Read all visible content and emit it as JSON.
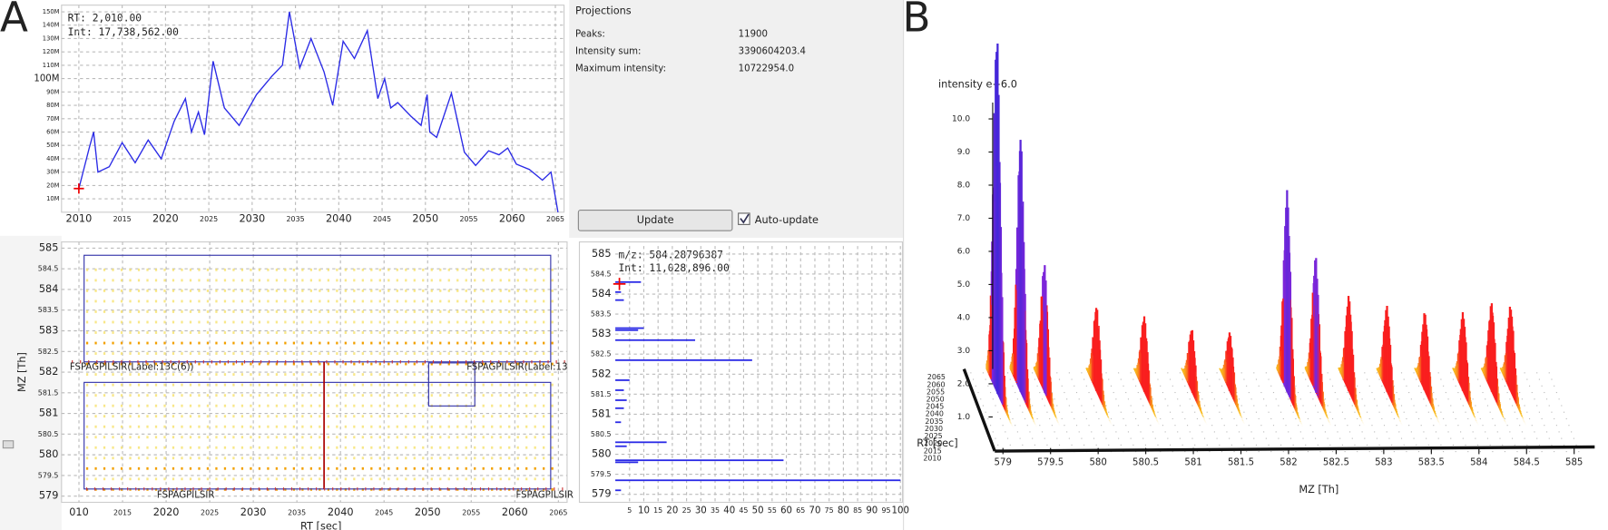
{
  "labels": {
    "a": "A",
    "b": "B"
  },
  "rt_chart": {
    "type": "line",
    "cursor_rt": "RT:  2,010.00",
    "cursor_int": "Int: 17,738,562.00",
    "color": "#2a2ae6",
    "x": [
      2010,
      2011.2,
      2011.7,
      2012.2,
      2013.5,
      2015,
      2016.5,
      2018,
      2019.5,
      2021,
      2022.3,
      2023,
      2023.8,
      2024.5,
      2025.5,
      2026.8,
      2028.5,
      2030.5,
      2032.3,
      2033.5,
      2034.3,
      2035.5,
      2036.8,
      2038.3,
      2039.3,
      2040.5,
      2041.8,
      2043.3,
      2044.5,
      2045.3,
      2046,
      2046.8,
      2048.3,
      2049.5,
      2050.2,
      2050.5,
      2051.3,
      2053,
      2054.5,
      2055.8,
      2057.3,
      2058.5,
      2059.5,
      2060.5,
      2062,
      2063.5,
      2064.5,
      2065.3
    ],
    "values": [
      17.7,
      48,
      60,
      30,
      34,
      52,
      37,
      54,
      40,
      68,
      85,
      60,
      75,
      58,
      113,
      78,
      65,
      88,
      102,
      110,
      150,
      108,
      130,
      105,
      80,
      128,
      115,
      136,
      85,
      100,
      78,
      82,
      72,
      65,
      88,
      60,
      56,
      89,
      45,
      35,
      46,
      43,
      48,
      36,
      32,
      24,
      30,
      0
    ],
    "xlim": [
      2008,
      2066
    ],
    "xticks": [
      2010,
      2015,
      2020,
      2025,
      2030,
      2035,
      2040,
      2045,
      2050,
      2055,
      2060,
      2065
    ],
    "ylim": [
      0,
      155
    ],
    "yticks": [
      {
        "value": 10,
        "label": "10M"
      },
      {
        "value": 20,
        "label": "20M"
      },
      {
        "value": 30,
        "label": "30M"
      },
      {
        "value": 40,
        "label": "40M"
      },
      {
        "value": 50,
        "label": "50M"
      },
      {
        "value": 60,
        "label": "60M"
      },
      {
        "value": 70,
        "label": "70M"
      },
      {
        "value": 80,
        "label": "80M"
      },
      {
        "value": 90,
        "label": "90M"
      },
      {
        "value": 100,
        "label": "100M"
      },
      {
        "value": 110,
        "label": "110M"
      },
      {
        "value": 120,
        "label": "120M"
      },
      {
        "value": 130,
        "label": "130M"
      },
      {
        "value": 140,
        "label": "140M"
      },
      {
        "value": 150,
        "label": "150M"
      }
    ],
    "grid": true
  },
  "projections": {
    "title": "Projections",
    "rows": [
      [
        "Peaks:",
        "11900"
      ],
      [
        "Intensity sum:",
        "3390604203.4"
      ],
      [
        "Maximum intensity:",
        "10722954.0"
      ]
    ],
    "button": "Update",
    "checkbox": "Auto-update"
  },
  "map_2d": {
    "x_label": "RT [sec]",
    "y_label": "MZ [Th]",
    "xlim": [
      2008,
      2066
    ],
    "ylim": [
      578.85,
      585.15
    ],
    "xticks": [
      {
        "value": 2010,
        "label": "010"
      },
      2015,
      2020,
      2025,
      2030,
      2035,
      2040,
      2045,
      2050,
      2055,
      2060,
      2065
    ],
    "yticks": [
      579,
      579.5,
      580,
      580.5,
      581,
      581.5,
      582,
      582.5,
      583,
      583.5,
      584,
      584.5,
      585
    ],
    "features": [
      "FSPAGPILSIR(Label:13C(6))",
      "FSPAGPILSIR(Label:13",
      "FSPAGPILSIR",
      "FSPAGPILSIR"
    ]
  },
  "mz_projection": {
    "type": "bar",
    "cursor_mz": "m/z: 584.28796387",
    "cursor_int": "Int: 11,028,896.00",
    "color": "#2a2ae6",
    "mz": [
      584.3,
      584.05,
      583.85,
      583.15,
      583.1,
      582.85,
      582.35,
      581.85,
      581.6,
      581.35,
      581.15,
      580.8,
      580.3,
      580.2,
      579.85,
      579.8,
      579.35,
      579.1
    ],
    "values": [
      9,
      2,
      3,
      10,
      8,
      28,
      48,
      5,
      3,
      4,
      3,
      2,
      18,
      4,
      59,
      8,
      100,
      2
    ],
    "xlim": [
      0,
      100
    ],
    "xticks": [
      5,
      10,
      15,
      20,
      25,
      30,
      35,
      40,
      45,
      50,
      55,
      60,
      65,
      70,
      75,
      80,
      85,
      90,
      95,
      100
    ],
    "ylim": [
      578.8,
      585.2
    ],
    "yticks": [
      579,
      579.5,
      580,
      580.5,
      581,
      581.5,
      582,
      582.5,
      583,
      583.5,
      584,
      584.5,
      585
    ]
  },
  "view_3d": {
    "type": "3d",
    "y_label": "intensity e+6.0",
    "x_label": "MZ [Th]",
    "z_label": "RT [sec]",
    "mz": [
      579.15,
      579.4,
      579.65,
      580.2,
      580.7,
      581.2,
      581.6,
      582.2,
      582.5,
      582.85,
      583.25,
      583.65,
      584.05,
      584.35,
      584.55
    ],
    "values": [
      10.9,
      7.8,
      3.9,
      2.6,
      2.3,
      1.9,
      1.8,
      6.1,
      4.1,
      2.9,
      2.6,
      2.4,
      2.4,
      2.7,
      2.6
    ],
    "xlim": [
      579,
      585
    ],
    "xticks": [
      579,
      579.5,
      580,
      580.5,
      581,
      581.5,
      582,
      582.5,
      583,
      583.5,
      584,
      584.5,
      585
    ],
    "ylim": [
      0,
      11
    ],
    "yticks": [
      {
        "value": 1,
        "label": "1.0"
      },
      {
        "value": 2,
        "label": "2.0"
      },
      {
        "value": 3,
        "label": "3.0"
      },
      {
        "value": 4,
        "label": "4.0"
      },
      {
        "value": 5,
        "label": "5.0"
      },
      {
        "value": 6,
        "label": "6.0"
      },
      {
        "value": 7,
        "label": "7.0"
      },
      {
        "value": 8,
        "label": "8.0"
      },
      {
        "value": 9,
        "label": "9.0"
      },
      {
        "value": 10,
        "label": "10.0"
      }
    ],
    "rt_ticks": [
      2010,
      2015,
      2020,
      2025,
      2030,
      2035,
      2040,
      2045,
      2050,
      2055,
      2060,
      2065
    ]
  }
}
